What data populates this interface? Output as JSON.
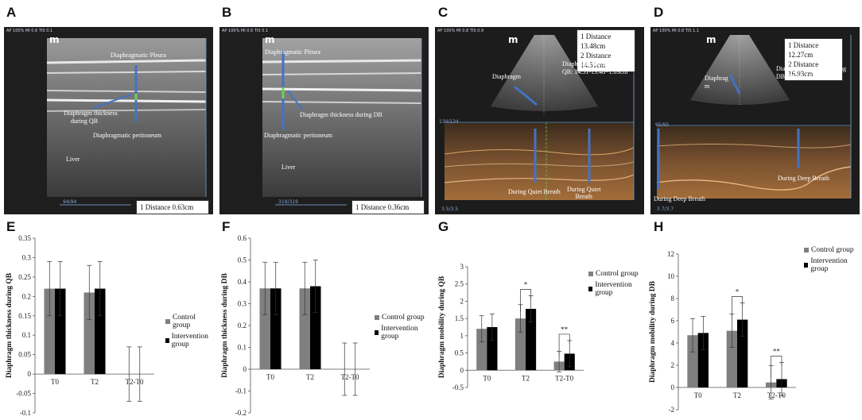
{
  "panels": {
    "A": {
      "label": "A",
      "header": "AP 100%  MI 0.6  TIS 0.1",
      "logo": "m",
      "pleura": "Diaphragmatic Pleura",
      "thickness": "Diaphragm thickness",
      "thickness2": "during QB",
      "peritoneum": "Diaphragmatic peritoneum",
      "liver": "Liver",
      "distance": "1 Distance 0.63cm",
      "frame": "94/94"
    },
    "B": {
      "label": "B",
      "header": "AP 100%  MI 0.6  TIS 0.1",
      "logo": "m",
      "pleura": "Diaphragmatic Pleura",
      "thickness": "Diaphragm thickness during DB",
      "peritoneum": "Diaphragmatic peritoneum",
      "liver": "Liver",
      "distance": "1 Distance 0.36cm",
      "frame": "319/319"
    },
    "C": {
      "label": "C",
      "header": "AP 100%  MI 0.8  TIS 0.9",
      "logo": "m",
      "dist1": "1 Distance 13.48cm",
      "dist2": "2 Distance 14.51cm",
      "mobility1": "Diaphragm mobility during",
      "mobility2": "QB:  14.51-13.48=1.03cm",
      "diaphragm": "Diaphragm",
      "breath1": "During Quiet Breath",
      "breath2": "During Quiet",
      "breath3": "Breath",
      "frame": "134/134",
      "scale": "3.5/3.5"
    },
    "D": {
      "label": "D",
      "header": "AP 100%  MI 0.8  TIS 1.1",
      "logo": "m",
      "dist1": "1 Distance 12.27cm",
      "dist2": "2 Distance 16.93cm",
      "mobility1": "Diaphragm mobility during",
      "mobility2": "DB:  16.93-12.27=4.66cm",
      "diaphragm1": "Diaphrag",
      "diaphragm2": "m",
      "breath1": "During Deep Breath",
      "breath2": "During Deep Breath",
      "frame": "95/95",
      "scale": "3.7/3.7"
    }
  },
  "colors": {
    "control": "#7f7f7f",
    "intervention": "#000000"
  },
  "legend": {
    "control": "Control group",
    "intervention": "Intervention group"
  },
  "chart_data": [
    {
      "label": "E",
      "type": "bar",
      "ylabel": "Diaphragm thickness during QB",
      "categories": [
        "T0",
        "T2",
        "T2-T0"
      ],
      "ylim": [
        -0.1,
        0.35
      ],
      "yticks": [
        "0.35",
        "0.3",
        "0.25",
        "0.2",
        "0.15",
        "0.1",
        "0.05",
        "0",
        "-0.05",
        "-0.1"
      ],
      "series": [
        {
          "name": "Control group",
          "values": [
            0.22,
            0.21,
            0.0
          ],
          "errors": [
            0.07,
            0.07,
            0.07
          ]
        },
        {
          "name": "Intervention group",
          "values": [
            0.22,
            0.22,
            0.0
          ],
          "errors": [
            0.07,
            0.07,
            0.07
          ]
        }
      ],
      "annotations": []
    },
    {
      "label": "F",
      "type": "bar",
      "ylabel": "Diaphragm thickness during DB",
      "categories": [
        "T0",
        "T2",
        "T2-T0"
      ],
      "ylim": [
        -0.2,
        0.6
      ],
      "yticks": [
        "0.6",
        "0.5",
        "0.4",
        "0.3",
        "0.2",
        "0.1",
        "0",
        "-0.1",
        "-0.2"
      ],
      "series": [
        {
          "name": "Control group",
          "values": [
            0.37,
            0.37,
            0.0
          ],
          "errors": [
            0.12,
            0.12,
            0.12
          ]
        },
        {
          "name": "Intervention group",
          "values": [
            0.37,
            0.38,
            0.0
          ],
          "errors": [
            0.12,
            0.12,
            0.12
          ]
        }
      ],
      "annotations": []
    },
    {
      "label": "G",
      "type": "bar",
      "ylabel": "Diaphragm mobility during QB",
      "categories": [
        "T0",
        "T2",
        "T2-T0"
      ],
      "ylim": [
        -0.5,
        3.0
      ],
      "yticks": [
        "3",
        "2.5",
        "2",
        "1.5",
        "1",
        "0.5",
        "0",
        "-0.5"
      ],
      "series": [
        {
          "name": "Control group",
          "values": [
            1.2,
            1.5,
            0.25
          ],
          "errors": [
            0.38,
            0.4,
            0.3
          ]
        },
        {
          "name": "Intervention group",
          "values": [
            1.25,
            1.78,
            0.48
          ],
          "errors": [
            0.38,
            0.38,
            0.38
          ]
        }
      ],
      "annotations": [
        "*",
        "**"
      ]
    },
    {
      "label": "H",
      "type": "bar",
      "ylabel": "Diaphragm mobility during DB",
      "categories": [
        "T0",
        "T2",
        "T2-T0"
      ],
      "ylim": [
        -2,
        12
      ],
      "yticks": [
        "12",
        "10",
        "8",
        "6",
        "4",
        "2",
        "0",
        "-2"
      ],
      "series": [
        {
          "name": "Control group",
          "values": [
            4.7,
            5.1,
            0.45
          ],
          "errors": [
            1.5,
            1.5,
            1.5
          ]
        },
        {
          "name": "Intervention group",
          "values": [
            4.9,
            6.1,
            0.75
          ],
          "errors": [
            1.5,
            1.5,
            1.5
          ]
        }
      ],
      "annotations": [
        "*",
        "**"
      ]
    }
  ]
}
